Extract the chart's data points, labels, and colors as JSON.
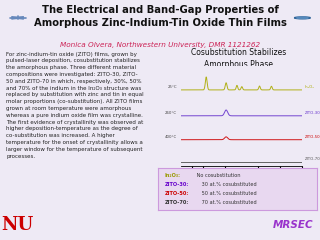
{
  "title": "The Electrical and Band-Gap Properties of\nAmorphous Zinc-Indium-Tin Oxide Thin Films",
  "subtitle": "Monica Olvera, Northwestern University, DMR 1121262",
  "body_text": "For zinc-indium-tin oxide (ZITO) films, grown by\npulsed-laser deposition, cosubstitution stabilizes\nthe amorphous phase. Three different material\ncompositions were investigated: ZITO-30, ZITO-\n50 and ZITO-70 in which, respectively, 30%, 50%\nand 70% of the indium in the In₂O₃ structure was\nreplaced by substitution with zinc and tin in equal\nmolar proportions (co-substitution). All ZITO films\ngrown at room temperature were amorphous\nwhereas a pure indium oxide film was crystalline.\nThe first evidence of crystallinity was observed at\nhigher deposition-temperature as the degree of\nco-substitution was increased. A higher\ntemperature for the onset of crystallinity allows a\nlarger window for the temperature of subsequent\nprocesses.",
  "chart_title": "Cosubstitution Stabilizes\nAmorphous Phase",
  "bg_color": "#eeeaf5",
  "title_bg": "#ffffff",
  "header_line_color": "#9966cc",
  "nu_color": "#cc0000",
  "mrsec_color": "#9933cc",
  "subtitle_color": "#cc2255",
  "body_color": "#222222",
  "chart_title_color": "#111111",
  "leg_bg": "#e8d8f0",
  "leg_border": "#cc99dd",
  "line_colors": [
    "#aaaa00",
    "#6633cc",
    "#cc0000",
    "#555555"
  ],
  "line_labels": [
    "In₂O₃",
    "ZITO-30",
    "ZITO-50",
    "ZITO-70"
  ],
  "temp_labels": [
    "25°C",
    "260°C",
    "400°C"
  ],
  "leg_bold_colors": [
    "#999900",
    "#6600cc",
    "#cc0000",
    "#333333"
  ],
  "leg_bold_texts": [
    "In₂O₃:",
    "ZITO-30:",
    "ZITO-50:",
    "ZITO-70:"
  ],
  "leg_plain_texts": [
    " No cosubstitution",
    " 30 at.% cosubstituted",
    " 50 at.% cosubstituted",
    " 70 at.% cosubstituted"
  ]
}
